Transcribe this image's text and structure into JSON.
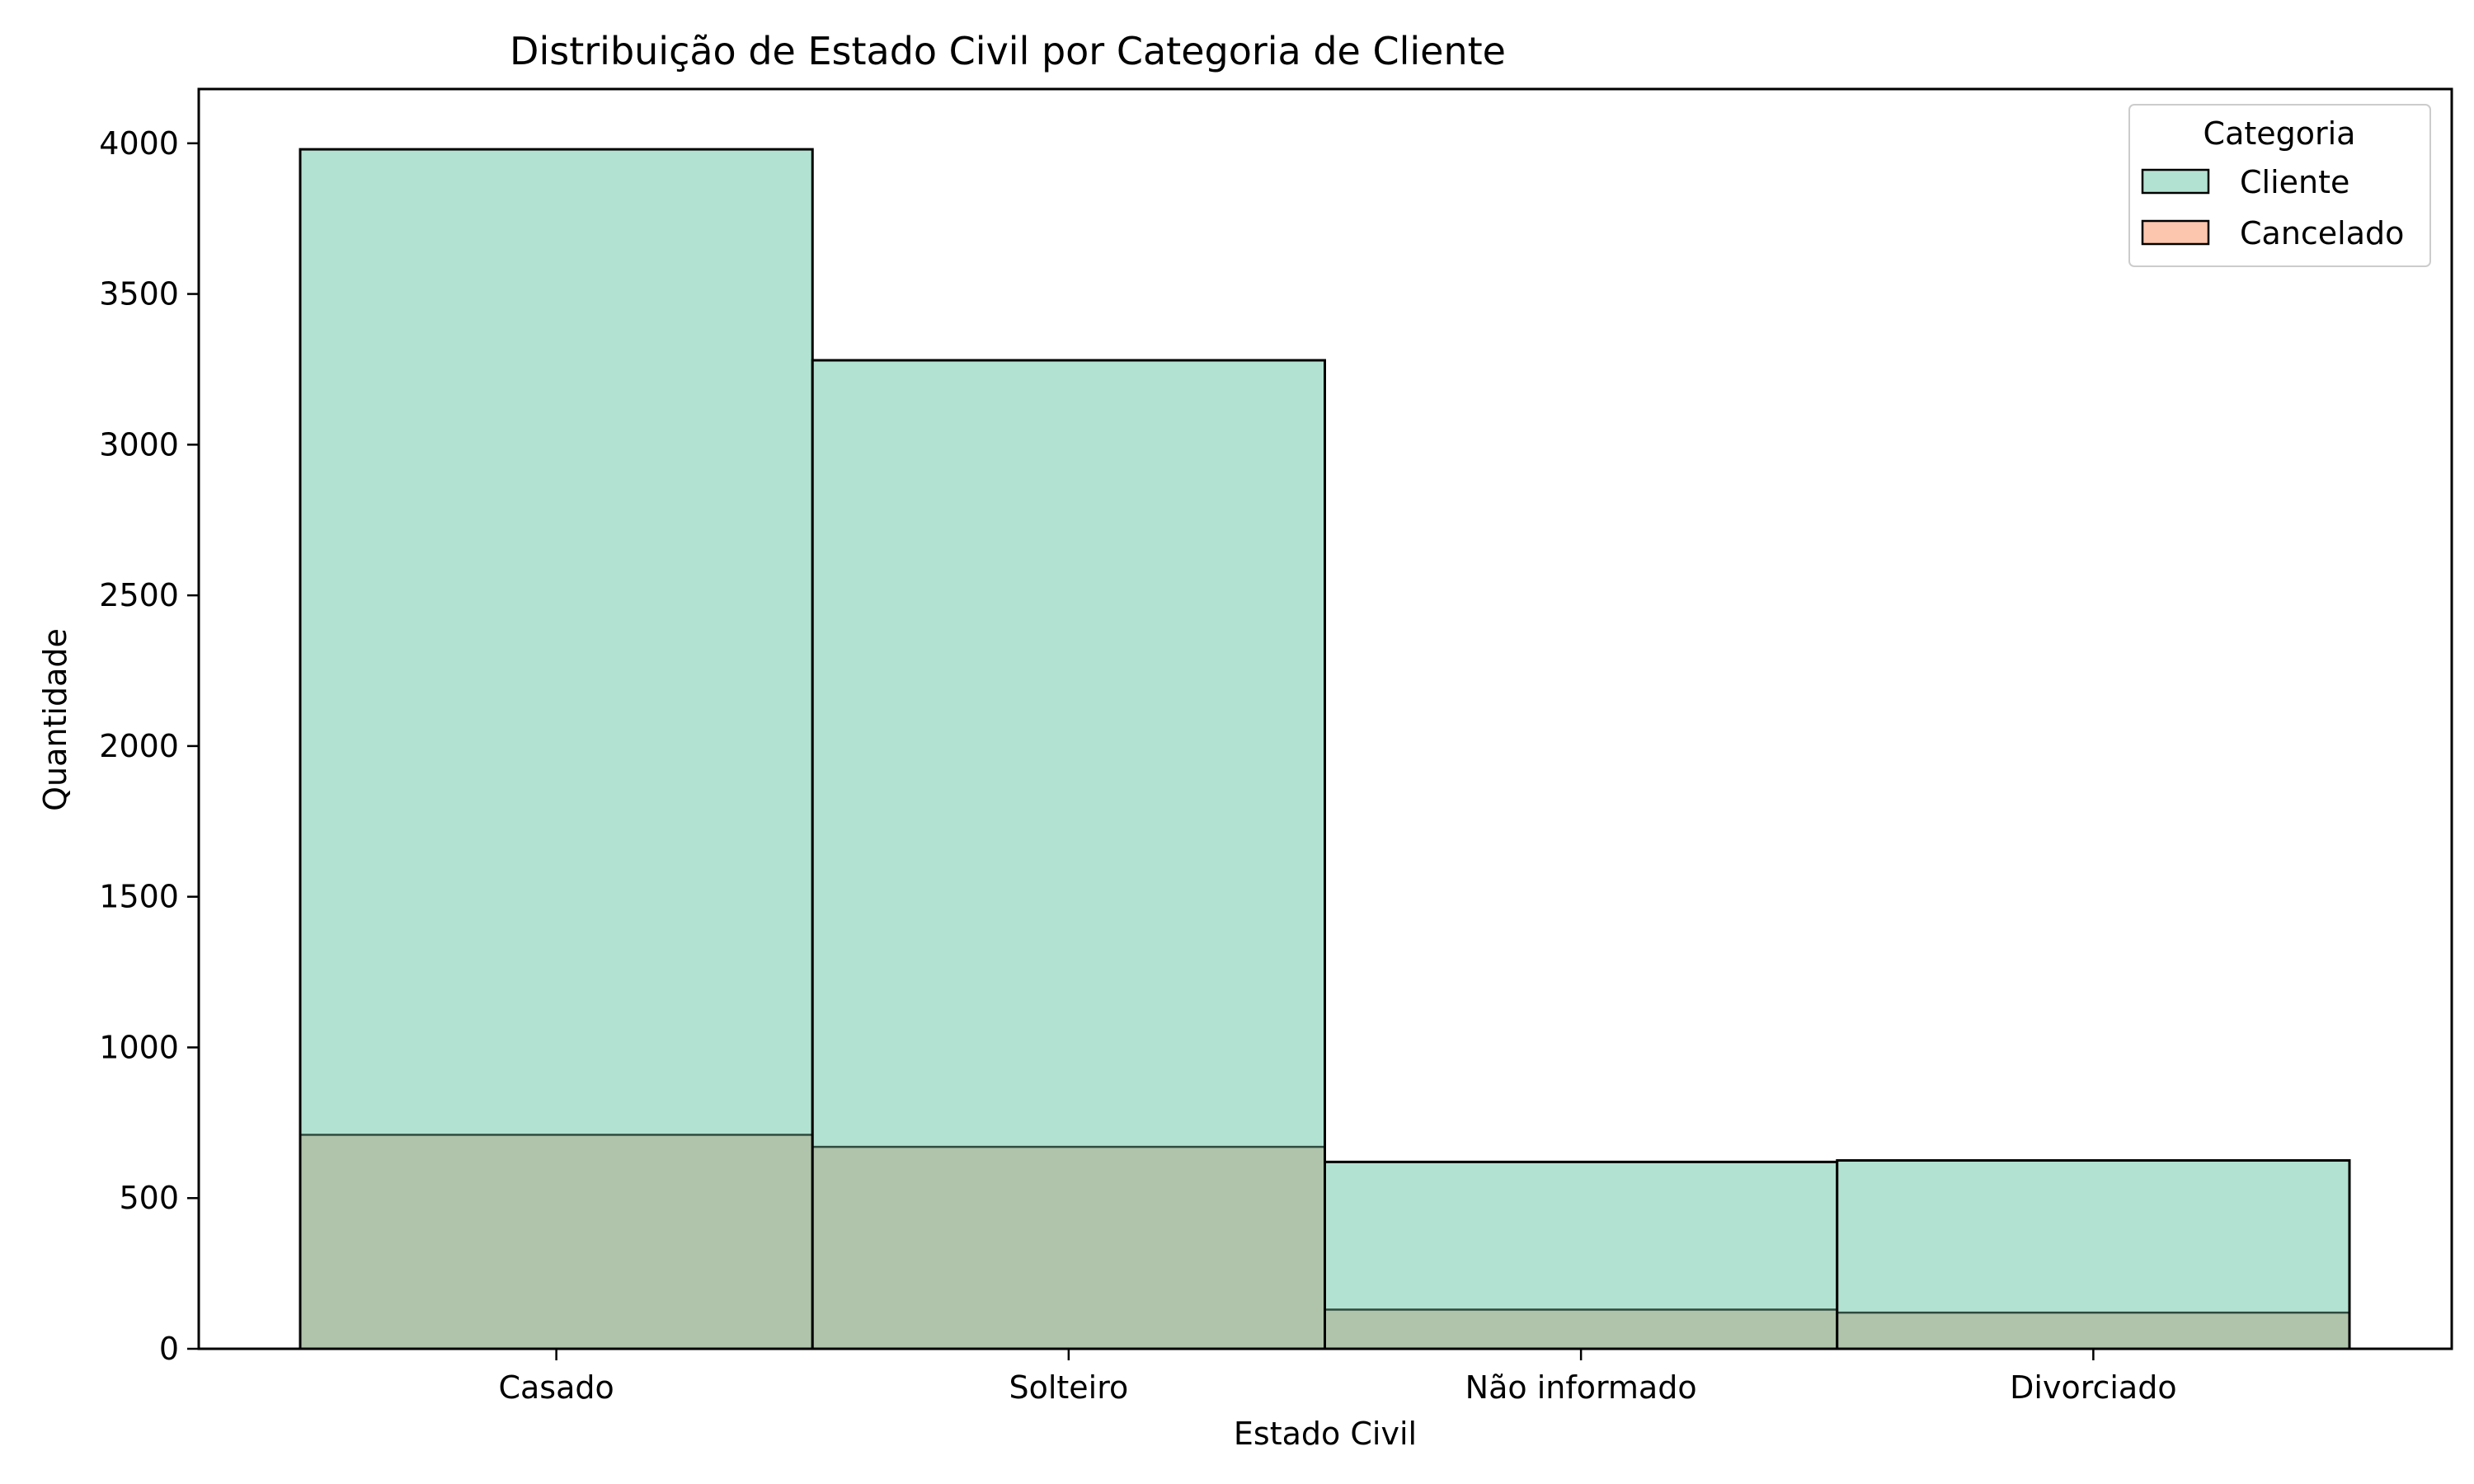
{
  "chart_data": {
    "type": "bar",
    "title": "Distribuição de Estado Civil por Categoria de Cliente",
    "xlabel": "Estado Civil",
    "ylabel": "Quantidade",
    "categories": [
      "Casado",
      "Solteiro",
      "Não informado",
      "Divorciado"
    ],
    "series": [
      {
        "name": "Cliente",
        "values": [
          3980,
          3280,
          620,
          625
        ],
        "color": "#b2e2d2"
      },
      {
        "name": "Cancelado",
        "values": [
          710,
          670,
          130,
          120
        ],
        "color": "#fcc5ad"
      }
    ],
    "overlap_color": "#b0c4ab",
    "ylim": [
      0,
      4180
    ],
    "yticks": [
      0,
      500,
      1000,
      1500,
      2000,
      2500,
      3000,
      3500,
      4000
    ],
    "grid": false,
    "legend": {
      "title": "Categoria",
      "placement": "top-right"
    }
  }
}
